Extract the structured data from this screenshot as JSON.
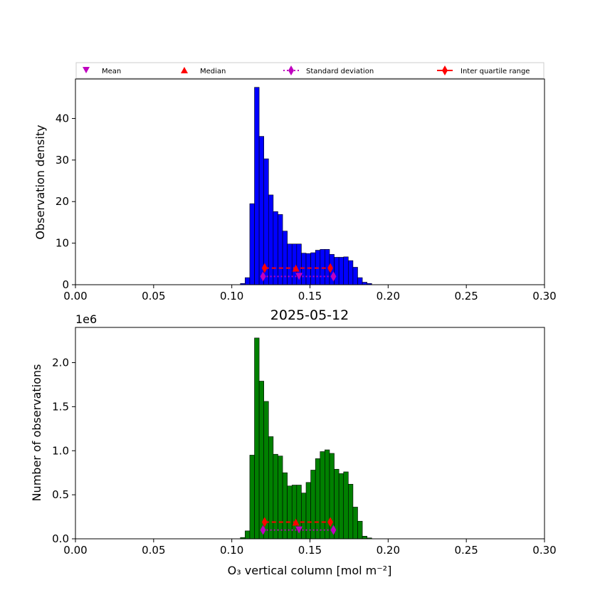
{
  "legend": [
    {
      "label": "Mean",
      "marker": "triangle-down",
      "color": "#bf00bf"
    },
    {
      "label": "Median",
      "marker": "triangle-up",
      "color": "#ff0000"
    },
    {
      "label": "Standard deviation",
      "marker": "diamond-dotted",
      "color": "#bf00bf"
    },
    {
      "label": "Inter quartile range",
      "marker": "diamond-solid",
      "color": "#ff0000"
    }
  ],
  "chart_data": [
    {
      "type": "bar",
      "id": "top",
      "bar_color": "#0000ff",
      "xlim": [
        0.0,
        0.3
      ],
      "ylim": [
        0,
        49.5
      ],
      "x_ticks": [
        "0.00",
        "0.05",
        "0.10",
        "0.15",
        "0.20",
        "0.25",
        "0.30"
      ],
      "x_tick_values": [
        0.0,
        0.05,
        0.1,
        0.15,
        0.2,
        0.25,
        0.3
      ],
      "y_ticks": [
        "0",
        "10",
        "20",
        "30",
        "40"
      ],
      "y_tick_values": [
        0,
        10,
        20,
        30,
        40
      ],
      "ylabel": "Observation density",
      "xlabel": "",
      "title": "",
      "bin_start": 0.1055,
      "bin_width": 0.003,
      "values": [
        0.3,
        1.7,
        19.5,
        47.5,
        35.7,
        30.3,
        21.6,
        17.6,
        16.9,
        12.9,
        9.8,
        9.8,
        9.8,
        7.6,
        7.5,
        7.7,
        8.3,
        8.5,
        8.5,
        7.3,
        6.6,
        6.6,
        6.7,
        5.8,
        4.2,
        1.7,
        0.6,
        0.3
      ],
      "stats": {
        "mean": 0.143,
        "median": 0.141,
        "std": [
          0.12,
          0.165
        ],
        "iqr": [
          0.121,
          0.163
        ],
        "std_y": 2.0,
        "iqr_y": 4.0
      }
    },
    {
      "type": "bar",
      "id": "bottom",
      "bar_color": "#008000",
      "xlim": [
        0.0,
        0.3
      ],
      "ylim": [
        0,
        2400000
      ],
      "x_ticks": [
        "0.00",
        "0.05",
        "0.10",
        "0.15",
        "0.20",
        "0.25",
        "0.30"
      ],
      "x_tick_values": [
        0.0,
        0.05,
        0.1,
        0.15,
        0.2,
        0.25,
        0.3
      ],
      "y_ticks": [
        "0.0",
        "0.5",
        "1.0",
        "1.5",
        "2.0"
      ],
      "y_tick_values": [
        0,
        500000,
        1000000,
        1500000,
        2000000
      ],
      "offset_text": "1e6",
      "ylabel": "Number of observations",
      "xlabel": "O₃ vertical column [mol m⁻²]",
      "title": "2025-05-12",
      "bin_start": 0.1055,
      "bin_width": 0.003,
      "values": [
        15000,
        90000,
        950000,
        2280000,
        1790000,
        1560000,
        1160000,
        960000,
        940000,
        750000,
        600000,
        610000,
        610000,
        520000,
        640000,
        780000,
        910000,
        990000,
        1010000,
        970000,
        790000,
        740000,
        760000,
        620000,
        360000,
        200000,
        30000,
        10000
      ],
      "stats": {
        "mean": 0.143,
        "median": 0.141,
        "std": [
          0.12,
          0.165
        ],
        "iqr": [
          0.121,
          0.163
        ],
        "std_y": 100000,
        "iqr_y": 190000
      }
    }
  ]
}
